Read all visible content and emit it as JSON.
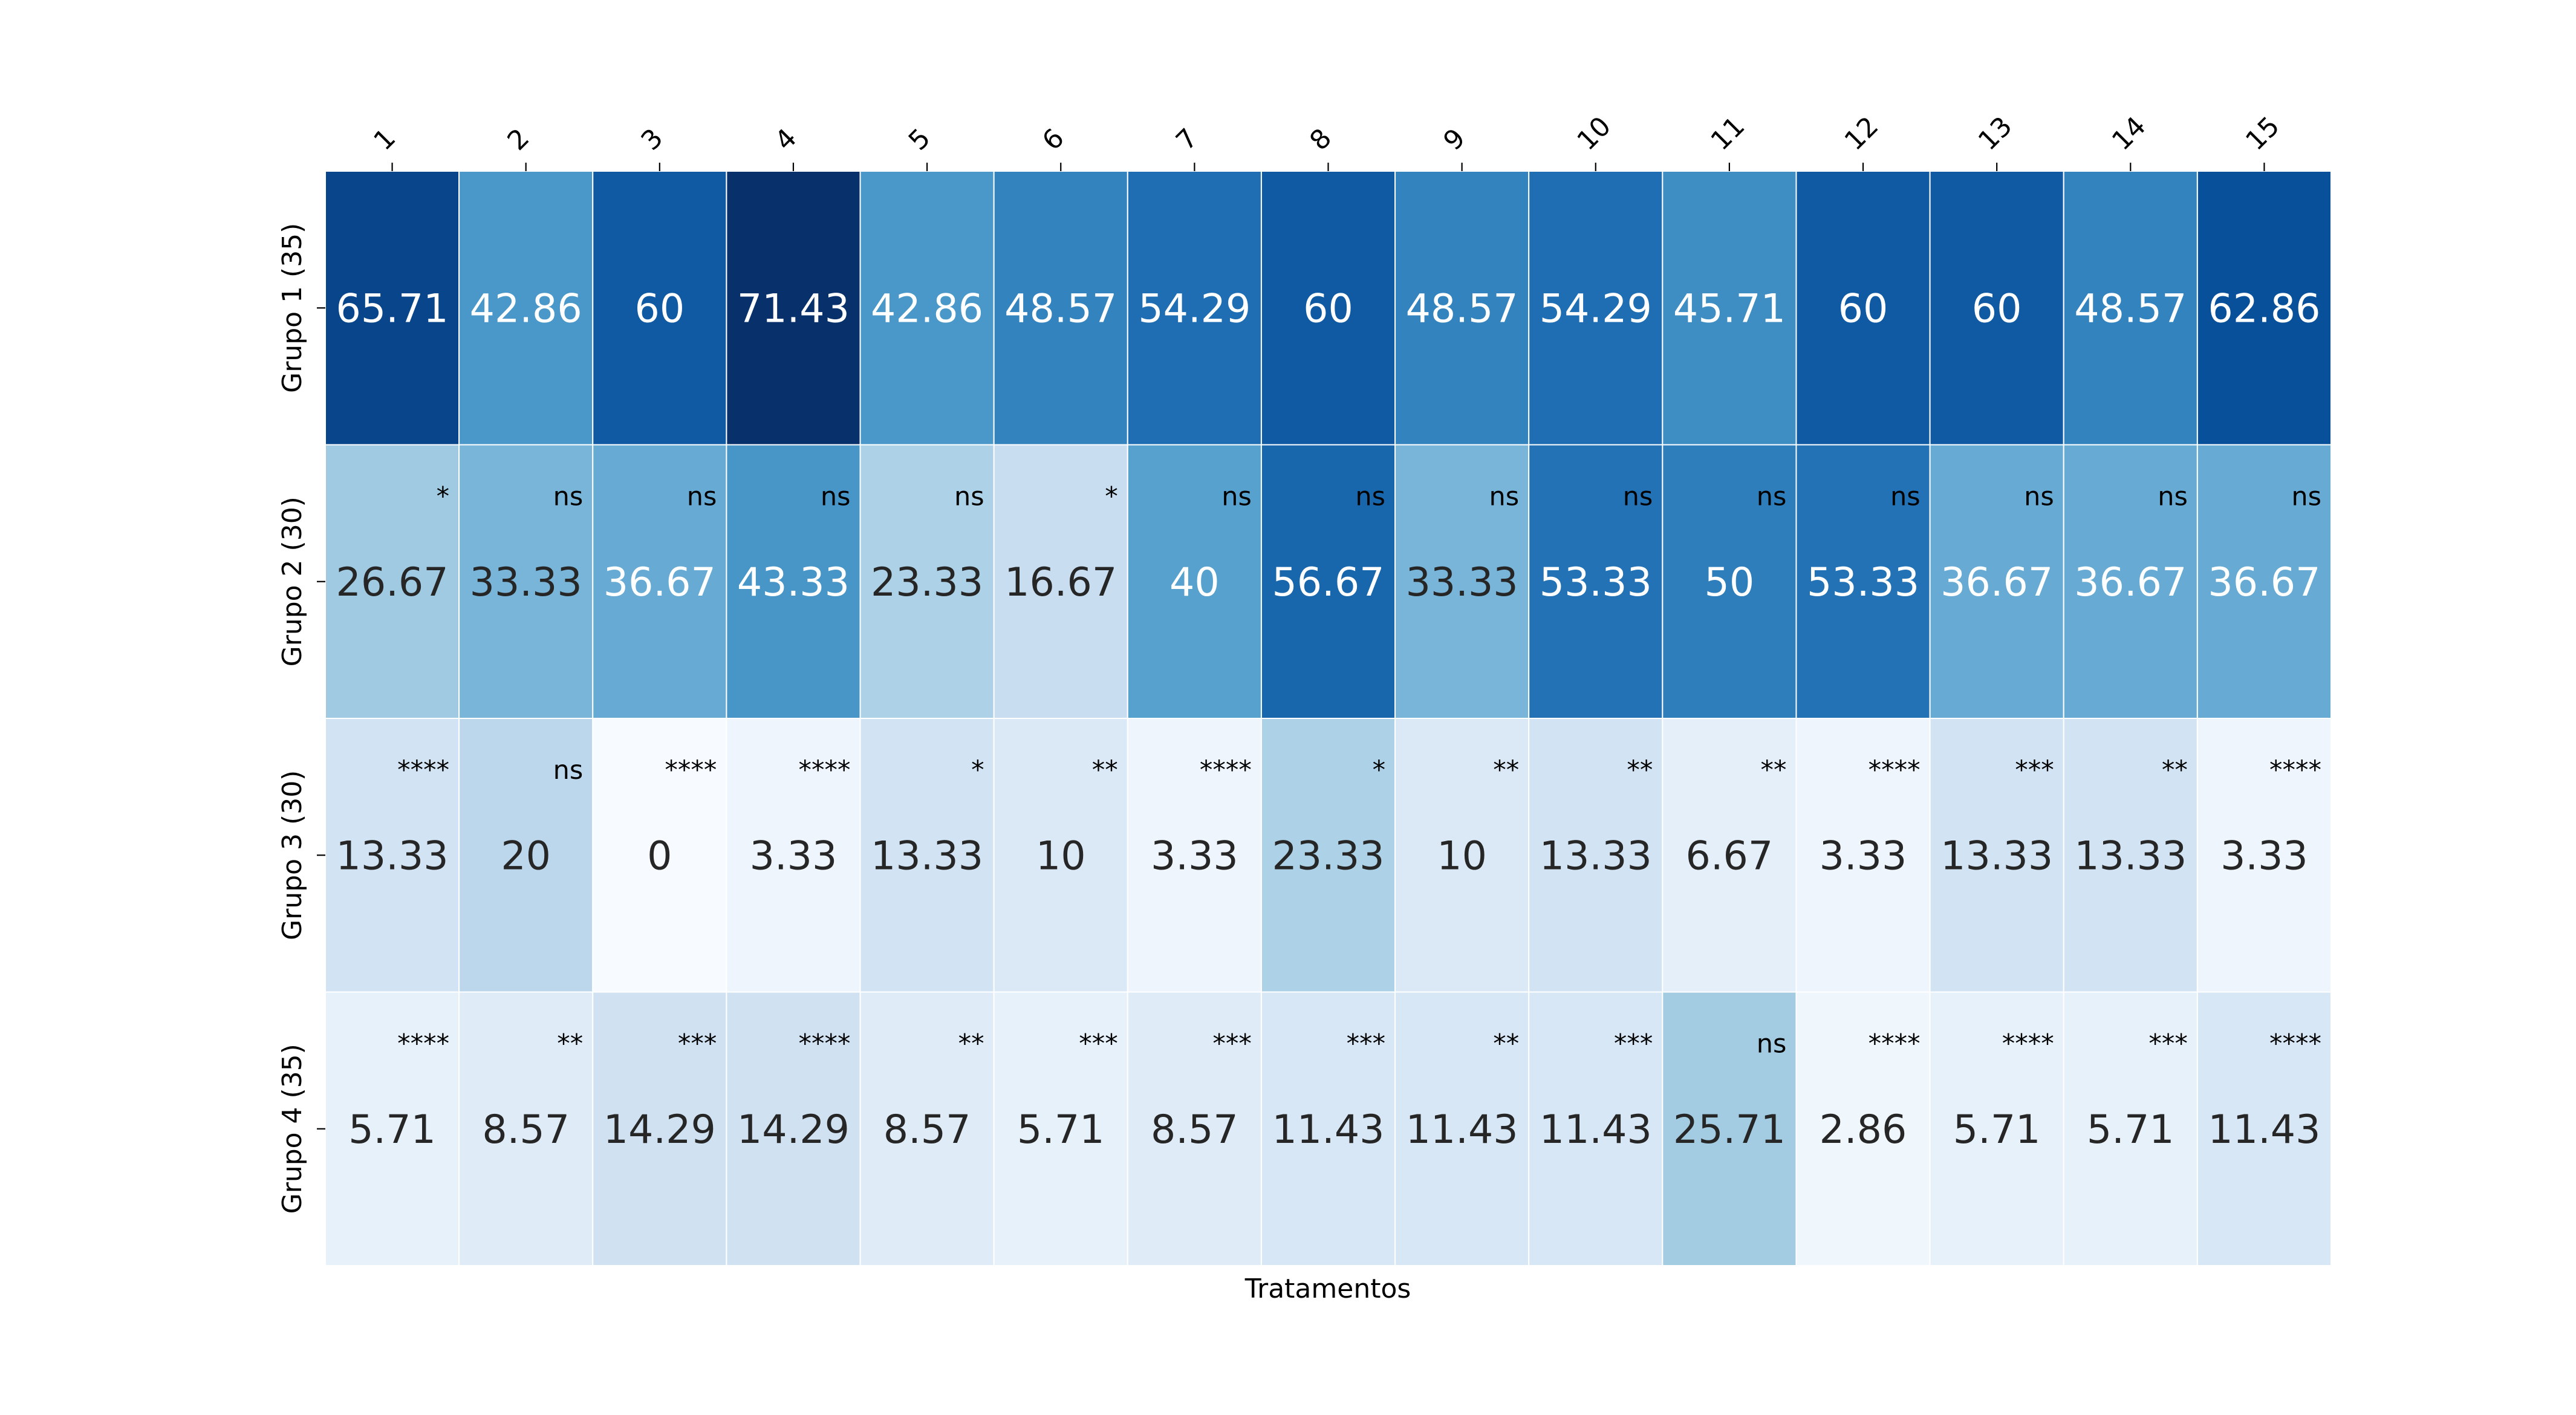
{
  "chart_data": {
    "type": "heatmap",
    "title": "",
    "xlabel": "Tratamentos",
    "ylabel": "",
    "x_position": "top",
    "colormap": "Blues",
    "value_range": [
      0,
      71.43
    ],
    "colorbar": false,
    "grid": false,
    "x_labels": [
      "1",
      "2",
      "3",
      "4",
      "5",
      "6",
      "7",
      "8",
      "9",
      "10",
      "11",
      "12",
      "13",
      "14",
      "15"
    ],
    "y_labels": [
      "Grupo 1 (35)",
      "Grupo 2 (30)",
      "Grupo 3 (30)",
      "Grupo 4 (35)"
    ],
    "values": [
      [
        "65.71",
        "42.86",
        "60",
        "71.43",
        "42.86",
        "48.57",
        "54.29",
        "60",
        "48.57",
        "54.29",
        "45.71",
        "60",
        "60",
        "48.57",
        "62.86"
      ],
      [
        "26.67",
        "33.33",
        "36.67",
        "43.33",
        "23.33",
        "16.67",
        "40",
        "56.67",
        "33.33",
        "53.33",
        "50",
        "53.33",
        "36.67",
        "36.67",
        "36.67"
      ],
      [
        "13.33",
        "20",
        "0",
        "3.33",
        "13.33",
        "10",
        "3.33",
        "23.33",
        "10",
        "13.33",
        "6.67",
        "3.33",
        "13.33",
        "13.33",
        "3.33"
      ],
      [
        "5.71",
        "8.57",
        "14.29",
        "14.29",
        "8.57",
        "5.71",
        "8.57",
        "11.43",
        "11.43",
        "11.43",
        "25.71",
        "2.86",
        "5.71",
        "5.71",
        "11.43"
      ]
    ],
    "significance": [
      [
        "",
        "",
        "",
        "",
        "",
        "",
        "",
        "",
        "",
        "",
        "",
        "",
        "",
        "",
        ""
      ],
      [
        "*",
        "ns",
        "ns",
        "ns",
        "ns",
        "*",
        "ns",
        "ns",
        "ns",
        "ns",
        "ns",
        "ns",
        "ns",
        "ns",
        "ns"
      ],
      [
        "****",
        "ns",
        "****",
        "****",
        "*",
        "**",
        "****",
        "*",
        "**",
        "**",
        "**",
        "****",
        "***",
        "**",
        "****"
      ],
      [
        "****",
        "**",
        "***",
        "****",
        "**",
        "***",
        "***",
        "***",
        "**",
        "***",
        "ns",
        "****",
        "****",
        "***",
        "****"
      ]
    ]
  }
}
